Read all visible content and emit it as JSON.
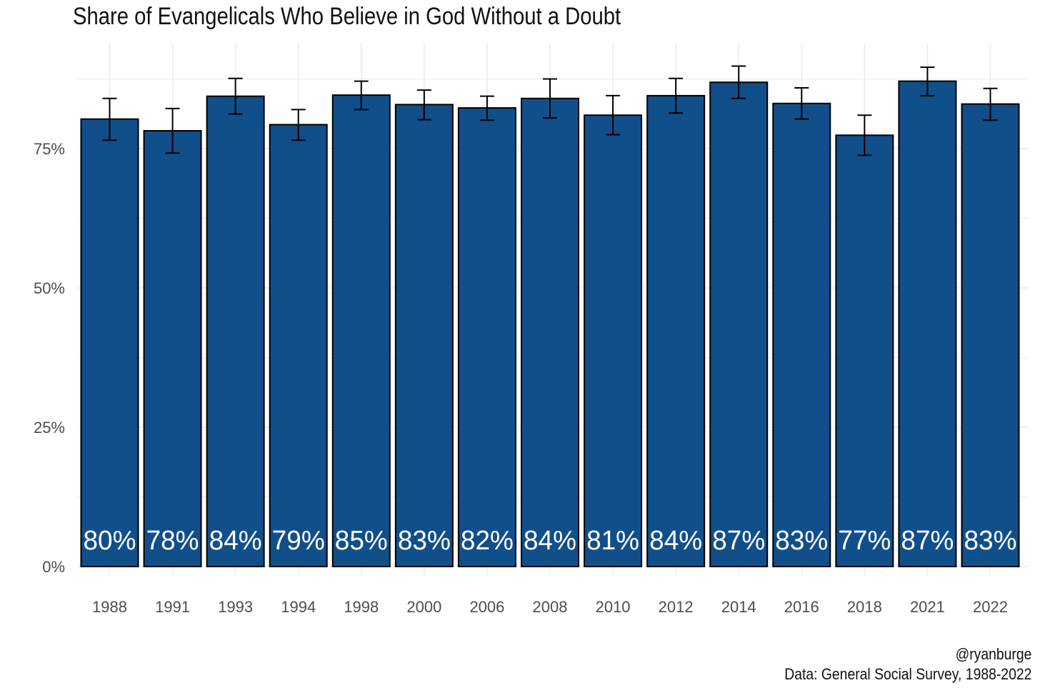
{
  "chart_data": {
    "type": "bar",
    "title": "Share of Evangelicals Who Believe in God Without a Doubt",
    "categories": [
      "1988",
      "1991",
      "1993",
      "1994",
      "1998",
      "2000",
      "2006",
      "2008",
      "2010",
      "2012",
      "2014",
      "2016",
      "2018",
      "2021",
      "2022"
    ],
    "values": [
      80.3,
      78.2,
      84.4,
      79.3,
      84.6,
      82.9,
      82.3,
      84.0,
      81.0,
      84.5,
      86.9,
      83.1,
      77.4,
      87.1,
      83.0
    ],
    "value_labels": [
      "80%",
      "78%",
      "84%",
      "79%",
      "85%",
      "83%",
      "82%",
      "84%",
      "81%",
      "84%",
      "87%",
      "83%",
      "77%",
      "87%",
      "83%"
    ],
    "error_low": [
      76.5,
      74.2,
      81.2,
      76.5,
      82.0,
      80.2,
      80.1,
      80.5,
      77.5,
      81.4,
      84.0,
      80.3,
      73.8,
      84.5,
      80.1
    ],
    "error_high": [
      84.0,
      82.2,
      87.6,
      82.0,
      87.1,
      85.5,
      84.4,
      87.5,
      84.5,
      87.6,
      89.8,
      85.9,
      81.0,
      89.6,
      85.8
    ],
    "ylim": [
      0,
      94
    ],
    "y_ticks": [
      0,
      25,
      50,
      75
    ],
    "y_tick_labels": [
      "0%",
      "25%",
      "50%",
      "75%"
    ],
    "xlabel": "",
    "ylabel": "",
    "grid": true,
    "colors": {
      "bar_fill": "#114f8b",
      "bar_outline": "#000000",
      "label_text": "#ffffff",
      "grid": "#ebebeb"
    }
  },
  "captions": {
    "handle": "@ryanburge",
    "source": "Data: General Social Survey, 1988-2022"
  }
}
